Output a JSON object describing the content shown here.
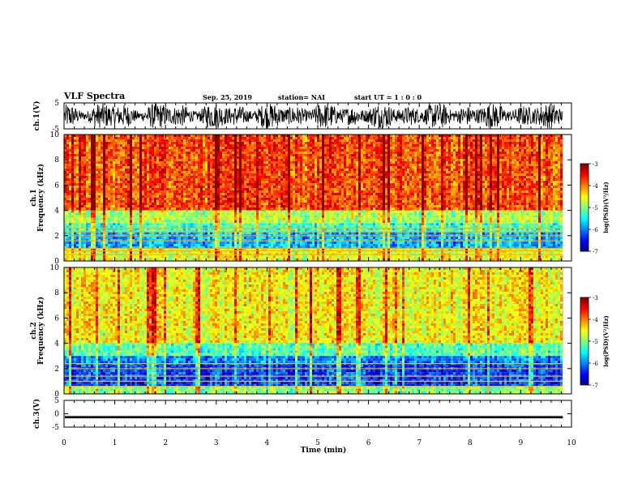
{
  "header": {
    "title": "VLF Spectra",
    "date": "Sep. 25, 2019",
    "station": "station= NAI",
    "start": "start  UT =   1 : 0  : 0"
  },
  "chart_data": [
    {
      "type": "line",
      "panel": "ch1-waveform",
      "ylabel": "ch.1(V)",
      "ylim": [
        -5,
        5
      ],
      "yticks": [
        "5",
        "-5"
      ],
      "xlim": [
        0,
        10
      ],
      "series": [
        {
          "x_start": 0,
          "x_end": 9.83,
          "amplitude_range": [
            -4.8,
            4.8
          ],
          "color": "#000000"
        }
      ]
    },
    {
      "type": "heatmap",
      "panel": "ch1-spectrogram",
      "ylabel": "ch.1\nFrequency (kHz)",
      "ylim": [
        0,
        10
      ],
      "yticks": [
        "0",
        "2",
        "4",
        "6",
        "8",
        "10"
      ],
      "xlim": [
        0,
        10
      ],
      "data_x_end": 9.83,
      "colorbar": {
        "label": "log(PSD)(V²/Hz)",
        "range": [
          -7,
          -3
        ],
        "ticks": [
          "-3",
          "-4",
          "-5",
          "-6",
          "-7"
        ]
      },
      "bands": [
        {
          "f_low": 4.0,
          "f_high": 10.0,
          "log_psd": -3.8
        },
        {
          "f_low": 3.0,
          "f_high": 4.0,
          "log_psd": -4.8
        },
        {
          "f_low": 2.3,
          "f_high": 3.0,
          "log_psd": -5.3
        },
        {
          "f_low": 1.0,
          "f_high": 2.3,
          "log_psd": -5.8
        },
        {
          "f_low": 0.0,
          "f_high": 1.0,
          "log_psd": -4.6
        }
      ],
      "lines_khz": [
        0.5,
        0.8,
        1.0,
        1.6,
        2.0,
        2.3,
        2.6
      ]
    },
    {
      "type": "heatmap",
      "panel": "ch2-spectrogram",
      "ylabel": "ch.2\nFrequency (kHz)",
      "ylim": [
        0,
        10
      ],
      "yticks": [
        "0",
        "2",
        "4",
        "6",
        "8",
        "10"
      ],
      "xlim": [
        0,
        10
      ],
      "data_x_end": 9.83,
      "colorbar": {
        "label": "log(PSD)(V²/Hz)",
        "range": [
          -7,
          -3
        ],
        "ticks": [
          "-3",
          "-4",
          "-5",
          "-6",
          "-7"
        ]
      },
      "bands": [
        {
          "f_low": 4.0,
          "f_high": 10.0,
          "log_psd": -4.5
        },
        {
          "f_low": 3.0,
          "f_high": 4.0,
          "log_psd": -5.2
        },
        {
          "f_low": 2.3,
          "f_high": 3.0,
          "log_psd": -6.0
        },
        {
          "f_low": 0.6,
          "f_high": 2.3,
          "log_psd": -6.3
        },
        {
          "f_low": 0.0,
          "f_high": 0.6,
          "log_psd": -5.0
        }
      ],
      "lines_khz": [
        0.6,
        1.0,
        1.4,
        2.0,
        2.4
      ]
    },
    {
      "type": "line",
      "panel": "ch3-waveform",
      "ylabel": "ch.3(V)",
      "ylim": [
        -5,
        5
      ],
      "yticks": [
        "5",
        "0",
        "-5"
      ],
      "xlim": [
        0,
        10
      ],
      "xlabel": "Time (min)",
      "xticks": [
        "0",
        "1",
        "2",
        "3",
        "4",
        "5",
        "6",
        "7",
        "8",
        "9",
        "10"
      ],
      "series": [
        {
          "x_start": 0,
          "x_end": 9.83,
          "level": -1.3,
          "color": "#000000"
        }
      ]
    }
  ]
}
